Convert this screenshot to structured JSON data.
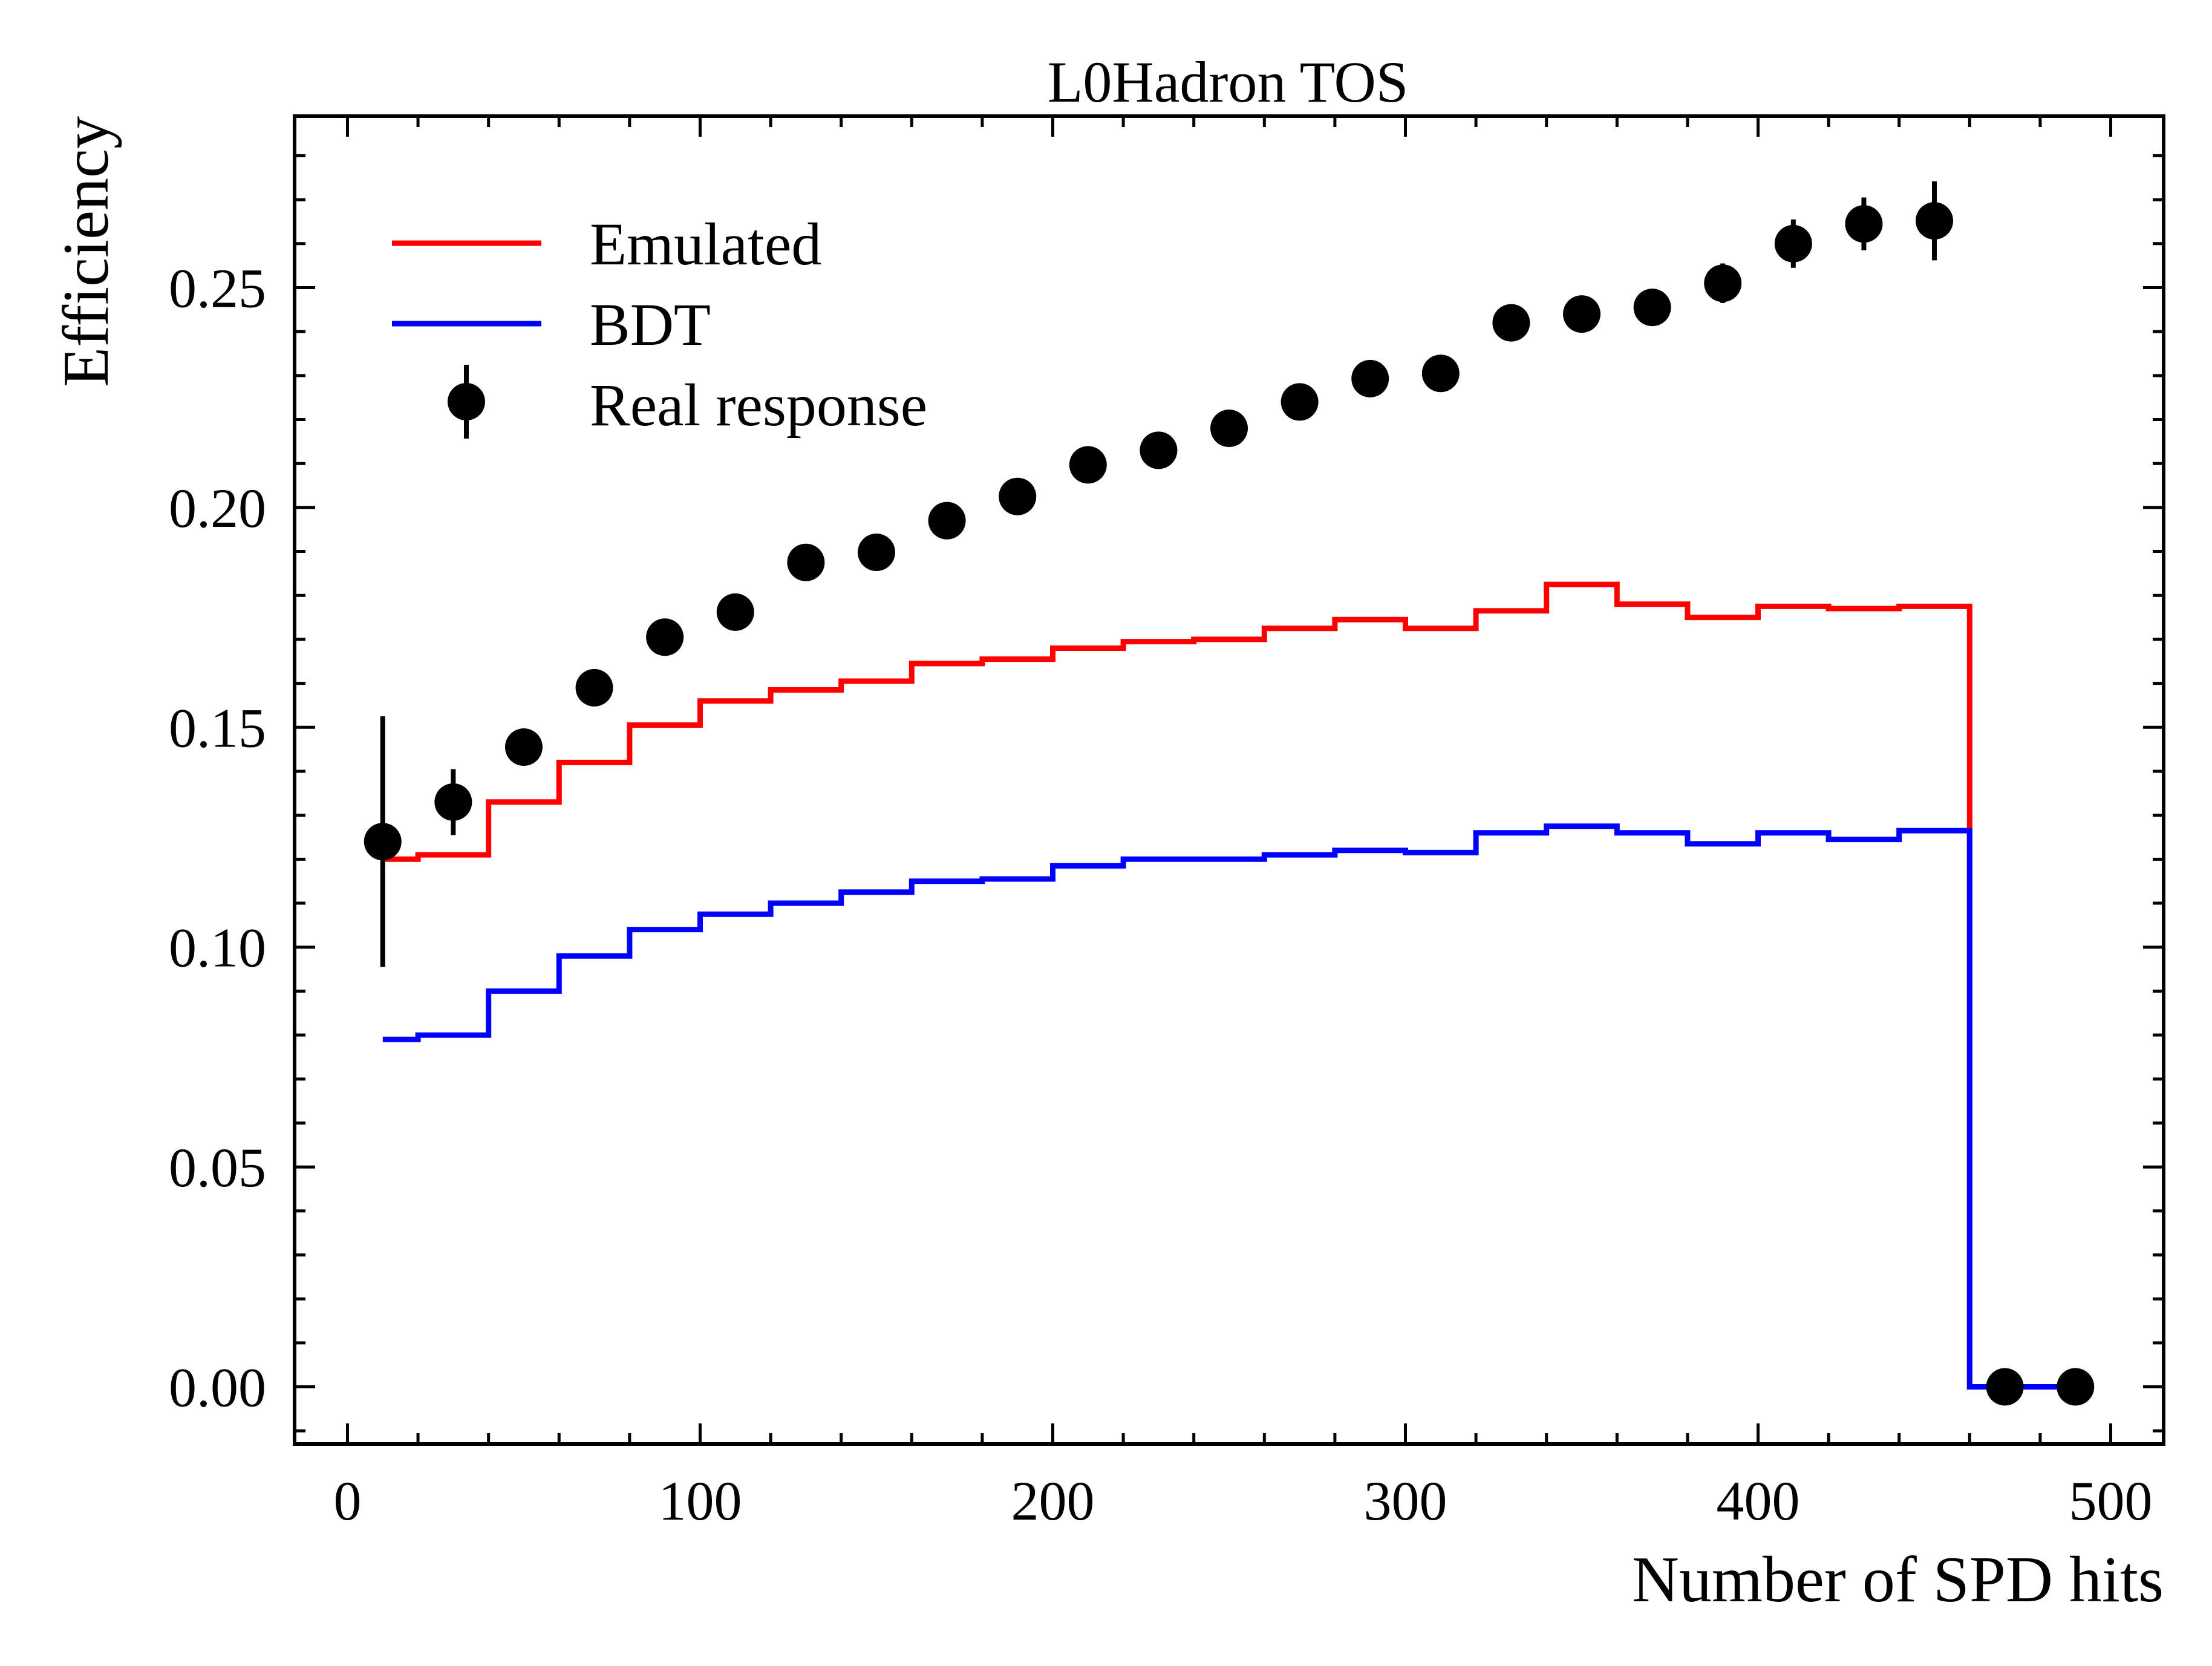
{
  "chart_data": {
    "type": "line",
    "title": "L0Hadron TOS",
    "xlabel": "Number of SPD hits",
    "ylabel": "Efficiency",
    "xlim": [
      -15,
      515
    ],
    "ylim": [
      -0.013,
      0.289
    ],
    "xticks": [
      0,
      100,
      200,
      300,
      400,
      500
    ],
    "xtick_labels": [
      "0",
      "100",
      "200",
      "300",
      "400",
      "500"
    ],
    "yticks": [
      0.0,
      0.05,
      0.1,
      0.15,
      0.2,
      0.25
    ],
    "ytick_labels": [
      "0.00",
      "0.05",
      "0.10",
      "0.15",
      "0.20",
      "0.25"
    ],
    "grid": false,
    "legend_position": "top-left",
    "bin_edges": [
      10,
      20,
      40,
      60,
      80,
      100,
      120,
      140,
      160,
      180,
      200,
      220,
      240,
      260,
      280,
      300,
      320,
      340,
      360,
      380,
      400,
      420,
      440,
      460,
      480,
      490
    ],
    "series": [
      {
        "name": "Emulated",
        "style": "step",
        "color": "#ff0000",
        "values": [
          0.12,
          0.121,
          0.133,
          0.142,
          0.1505,
          0.156,
          0.1585,
          0.1605,
          0.1645,
          0.1655,
          0.168,
          0.1695,
          0.17,
          0.1725,
          0.1745,
          0.1725,
          0.1765,
          0.1825,
          0.178,
          0.175,
          0.1775,
          0.177,
          0.1775,
          0.0,
          0.0
        ]
      },
      {
        "name": "BDT",
        "style": "step",
        "color": "#0000ff",
        "values": [
          0.079,
          0.08,
          0.09,
          0.098,
          0.104,
          0.1075,
          0.11,
          0.1125,
          0.115,
          0.1155,
          0.1185,
          0.12,
          0.12,
          0.121,
          0.122,
          0.1215,
          0.126,
          0.1275,
          0.126,
          0.1235,
          0.126,
          0.1245,
          0.1265,
          0.0,
          0.0
        ]
      },
      {
        "name": "Real response",
        "style": "errorbar",
        "color": "#000000",
        "x": [
          10,
          30,
          50,
          70,
          90,
          110,
          130,
          150,
          170,
          190,
          210,
          230,
          250,
          270,
          290,
          310,
          330,
          350,
          370,
          390,
          410,
          430,
          450,
          470,
          490
        ],
        "y": [
          0.124,
          0.133,
          0.1455,
          0.159,
          0.1705,
          0.1762,
          0.1875,
          0.1898,
          0.197,
          0.2025,
          0.2097,
          0.213,
          0.218,
          0.224,
          0.2293,
          0.2305,
          0.242,
          0.244,
          0.2455,
          0.251,
          0.26,
          0.2645,
          0.2652,
          0.0,
          0.0
        ],
        "yerr": [
          0.0285,
          0.0075,
          0.004,
          0.003,
          0.003,
          0.0035,
          0.003,
          0.003,
          0.003,
          0.003,
          0.003,
          0.0035,
          0.0035,
          0.0035,
          0.0035,
          0.0035,
          0.0035,
          0.0035,
          0.004,
          0.0045,
          0.0055,
          0.006,
          0.009,
          0.0,
          0.0
        ]
      }
    ]
  }
}
